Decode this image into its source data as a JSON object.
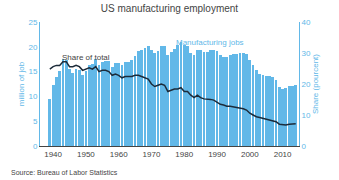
{
  "chart_data": {
    "type": "bar",
    "title": "US manufacturing employment",
    "source": "Source: Bureau of Labor Statistics",
    "ylabel": "million of job",
    "y2label": "Share (pourcent)",
    "x": [
      1939,
      1940,
      1941,
      1942,
      1943,
      1944,
      1945,
      1946,
      1947,
      1948,
      1949,
      1950,
      1951,
      1952,
      1953,
      1954,
      1955,
      1956,
      1957,
      1958,
      1959,
      1960,
      1961,
      1962,
      1963,
      1964,
      1965,
      1966,
      1967,
      1968,
      1969,
      1970,
      1971,
      1972,
      1973,
      1974,
      1975,
      1976,
      1977,
      1978,
      1979,
      1980,
      1981,
      1982,
      1983,
      1984,
      1985,
      1986,
      1987,
      1988,
      1989,
      1990,
      1991,
      1992,
      1993,
      1994,
      1995,
      1996,
      1997,
      1998,
      1999,
      2000,
      2001,
      2002,
      2003,
      2004,
      2005,
      2006,
      2007,
      2008,
      2009,
      2010,
      2011,
      2012,
      2013,
      2014
    ],
    "series": [
      {
        "type": "bar",
        "color": "#62B8E8",
        "values": [
          9.5,
          12.4,
          14.0,
          15.2,
          17.6,
          17.3,
          15.5,
          14.7,
          15.5,
          15.3,
          14.3,
          15.2,
          16.3,
          16.6,
          17.5,
          16.3,
          17.0,
          17.2,
          17.2,
          15.9,
          16.7,
          16.8,
          16.3,
          16.9,
          17.0,
          17.3,
          18.1,
          19.2,
          19.4,
          19.8,
          20.2,
          19.4,
          18.7,
          19.2,
          20.2,
          20.1,
          18.3,
          18.9,
          19.5,
          20.3,
          21.0,
          20.3,
          20.2,
          18.8,
          18.4,
          19.4,
          19.3,
          18.9,
          19.0,
          19.3,
          19.4,
          19.1,
          18.4,
          18.0,
          18.0,
          18.3,
          18.5,
          18.5,
          18.7,
          18.8,
          18.5,
          17.3,
          16.4,
          15.3,
          14.5,
          14.3,
          14.2,
          14.2,
          13.9,
          13.4,
          11.9,
          11.5,
          11.7,
          12.0,
          12.0,
          12.3
        ]
      },
      {
        "type": "line",
        "color": "#1C2B3A",
        "axis": "y",
        "values": [
          15.5,
          16.0,
          16.25,
          16.25,
          17.0,
          17.0,
          16.0,
          16.0,
          16.25,
          16.0,
          15.25,
          15.5,
          15.75,
          15.5,
          16.0,
          15.0,
          15.25,
          15.25,
          15.0,
          14.25,
          14.5,
          14.25,
          13.75,
          14.0,
          14.0,
          14.0,
          14.25,
          14.25,
          14.0,
          13.75,
          13.5,
          12.5,
          12.0,
          12.25,
          12.5,
          12.25,
          11.0,
          11.25,
          11.5,
          11.5,
          11.75,
          11.0,
          11.0,
          10.25,
          9.75,
          10.25,
          9.75,
          9.5,
          9.5,
          9.4,
          9.25,
          8.75,
          8.4,
          8.25,
          8.0,
          8.0,
          7.9,
          7.75,
          7.6,
          7.5,
          7.25,
          6.6,
          6.25,
          5.9,
          5.75,
          5.6,
          5.4,
          5.25,
          5.1,
          4.9,
          4.4,
          4.25,
          4.25,
          4.4,
          4.5,
          4.5
        ]
      }
    ],
    "xlim": [
      1936,
      2015
    ],
    "xticks": [
      1940,
      1950,
      1960,
      1970,
      1980,
      1990,
      2000,
      2010
    ],
    "ylim": [
      0,
      25
    ],
    "yticks": [
      0,
      5,
      10,
      15,
      20,
      25
    ],
    "y2lim": [
      0,
      40
    ],
    "y2ticks": [
      0,
      10,
      20,
      30,
      40
    ],
    "grid": false,
    "annotations": [
      {
        "text": "Share of total",
        "x": 1942,
        "y": 16.6
      },
      {
        "text": "Manufacturing jobs",
        "x": 1988,
        "y": 19.6,
        "color": "#62B8E8"
      }
    ]
  }
}
